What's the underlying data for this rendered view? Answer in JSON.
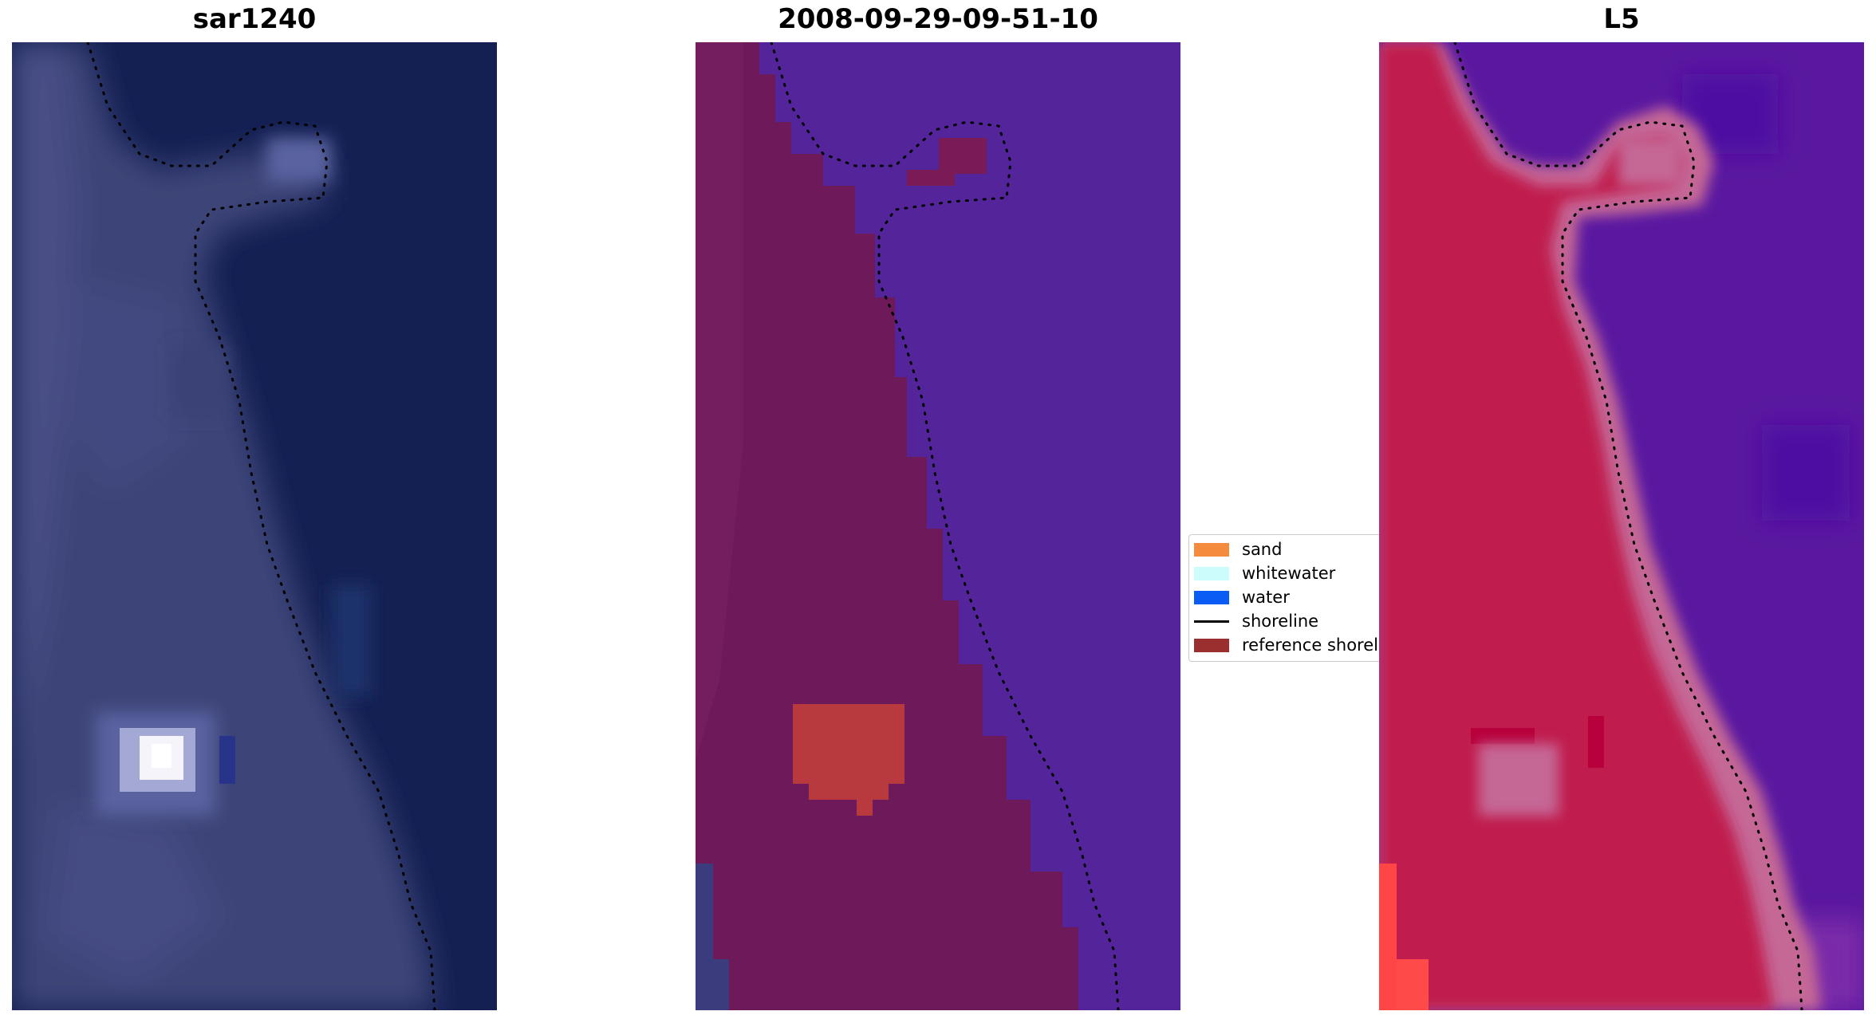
{
  "panels": [
    {
      "title": "sar1240",
      "image": "RGB composite of coastal scene"
    },
    {
      "title": "2008-09-29-09-51-10",
      "image": "classified image overlay"
    },
    {
      "title": "L5",
      "image": "false-colour index image"
    }
  ],
  "legend": {
    "items": [
      {
        "label": "sand",
        "color": "#f58b3c",
        "kind": "patch"
      },
      {
        "label": "whitewater",
        "color": "#cdfcfc",
        "kind": "patch"
      },
      {
        "label": "water",
        "color": "#0a5cf5",
        "kind": "patch"
      },
      {
        "label": "shoreline",
        "color": "#000000",
        "kind": "line"
      },
      {
        "label": "reference shoreline",
        "color": "#9b2e2e",
        "kind": "patch"
      }
    ]
  },
  "colors": {
    "rgb_land": "#3c4478",
    "rgb_sea": "#142052",
    "class_land": "#6e1a5a",
    "class_water": "#54259a",
    "index_land": "#c01e4e",
    "index_water": "#5a18a0",
    "index_edge": "#c56896"
  }
}
